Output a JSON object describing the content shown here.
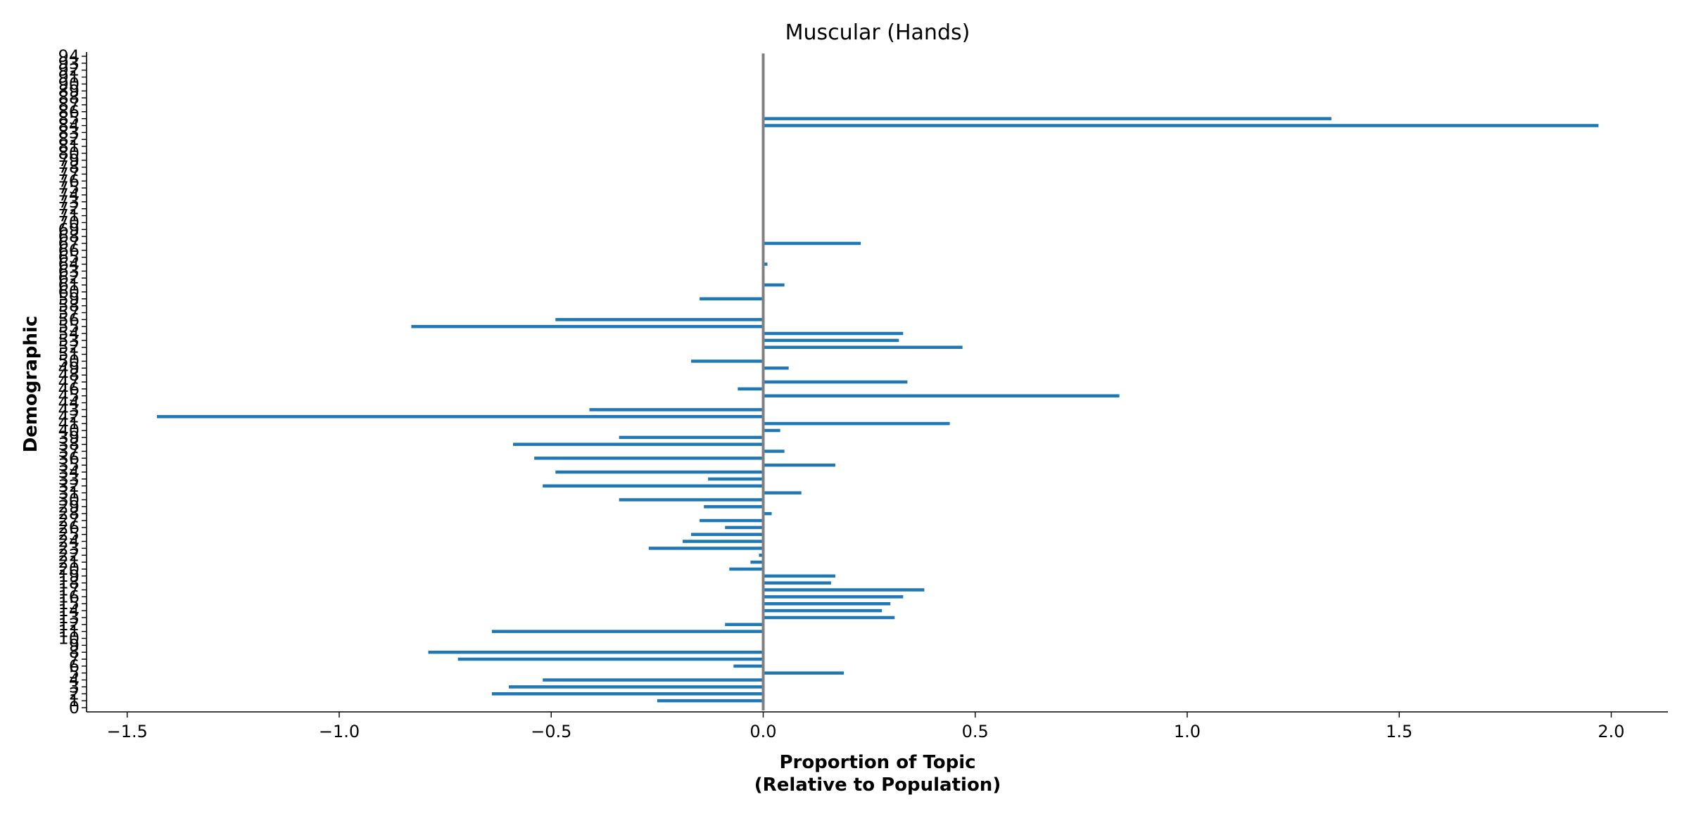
{
  "chart_data": {
    "type": "bar",
    "orientation": "horizontal",
    "title": "Muscular (Hands)",
    "xlabel_line1": "Proportion of Topic",
    "xlabel_line2": "(Relative to Population)",
    "ylabel": "Demographic",
    "xlim": [
      -1.5,
      2.1
    ],
    "ylim": [
      0,
      94
    ],
    "xticks": [
      -1.5,
      -1.0,
      -0.5,
      0.0,
      0.5,
      1.0,
      1.5,
      2.0
    ],
    "xtick_labels": [
      "−1.5",
      "−1.0",
      "−0.5",
      "0.0",
      "0.5",
      "1.0",
      "1.5",
      "2.0"
    ],
    "yticks": [
      0,
      1,
      2,
      3,
      4,
      5,
      6,
      7,
      8,
      9,
      10,
      11,
      12,
      13,
      14,
      15,
      16,
      17,
      18,
      19,
      20,
      21,
      22,
      23,
      24,
      25,
      26,
      27,
      28,
      29,
      30,
      31,
      32,
      33,
      34,
      35,
      36,
      37,
      38,
      39,
      40,
      41,
      42,
      43,
      44,
      45,
      46,
      47,
      48,
      49,
      50,
      51,
      52,
      53,
      54,
      55,
      56,
      57,
      58,
      59,
      60,
      61,
      62,
      63,
      64,
      65,
      66,
      67,
      68,
      69,
      70,
      71,
      72,
      73,
      74,
      75,
      76,
      77,
      78,
      79,
      80,
      81,
      82,
      83,
      84,
      85,
      86,
      87,
      88,
      89,
      90,
      91,
      92,
      93,
      94
    ],
    "bar_color": "#1f77b4",
    "zero_line_color": "#808080",
    "grid": false,
    "bars": [
      {
        "y": 1,
        "value": -0.25
      },
      {
        "y": 2,
        "value": -0.64
      },
      {
        "y": 3,
        "value": -0.6
      },
      {
        "y": 4,
        "value": -0.52
      },
      {
        "y": 5,
        "value": 0.19
      },
      {
        "y": 6,
        "value": -0.07
      },
      {
        "y": 7,
        "value": -0.72
      },
      {
        "y": 8,
        "value": -0.79
      },
      {
        "y": 11,
        "value": -0.64
      },
      {
        "y": 12,
        "value": -0.09
      },
      {
        "y": 13,
        "value": 0.31
      },
      {
        "y": 14,
        "value": 0.28
      },
      {
        "y": 15,
        "value": 0.3
      },
      {
        "y": 16,
        "value": 0.33
      },
      {
        "y": 17,
        "value": 0.38
      },
      {
        "y": 18,
        "value": 0.16
      },
      {
        "y": 19,
        "value": 0.17
      },
      {
        "y": 20,
        "value": -0.08
      },
      {
        "y": 21,
        "value": -0.03
      },
      {
        "y": 22,
        "value": -0.01
      },
      {
        "y": 23,
        "value": -0.27
      },
      {
        "y": 24,
        "value": -0.19
      },
      {
        "y": 25,
        "value": -0.17
      },
      {
        "y": 26,
        "value": -0.09
      },
      {
        "y": 27,
        "value": -0.15
      },
      {
        "y": 28,
        "value": 0.02
      },
      {
        "y": 29,
        "value": -0.14
      },
      {
        "y": 30,
        "value": -0.34
      },
      {
        "y": 31,
        "value": 0.09
      },
      {
        "y": 32,
        "value": -0.52
      },
      {
        "y": 33,
        "value": -0.13
      },
      {
        "y": 34,
        "value": -0.49
      },
      {
        "y": 35,
        "value": 0.17
      },
      {
        "y": 36,
        "value": -0.54
      },
      {
        "y": 37,
        "value": 0.05
      },
      {
        "y": 38,
        "value": -0.59
      },
      {
        "y": 39,
        "value": -0.34
      },
      {
        "y": 40,
        "value": 0.04
      },
      {
        "y": 41,
        "value": 0.44
      },
      {
        "y": 42,
        "value": -1.43
      },
      {
        "y": 43,
        "value": -0.41
      },
      {
        "y": 45,
        "value": 0.84
      },
      {
        "y": 46,
        "value": -0.06
      },
      {
        "y": 47,
        "value": 0.34
      },
      {
        "y": 49,
        "value": 0.06
      },
      {
        "y": 50,
        "value": -0.17
      },
      {
        "y": 52,
        "value": 0.47
      },
      {
        "y": 53,
        "value": 0.32
      },
      {
        "y": 54,
        "value": 0.33
      },
      {
        "y": 55,
        "value": -0.83
      },
      {
        "y": 56,
        "value": -0.49
      },
      {
        "y": 59,
        "value": -0.15
      },
      {
        "y": 61,
        "value": 0.05
      },
      {
        "y": 64,
        "value": 0.01
      },
      {
        "y": 67,
        "value": 0.23
      },
      {
        "y": 84,
        "value": 1.97
      },
      {
        "y": 85,
        "value": 1.34
      }
    ]
  }
}
